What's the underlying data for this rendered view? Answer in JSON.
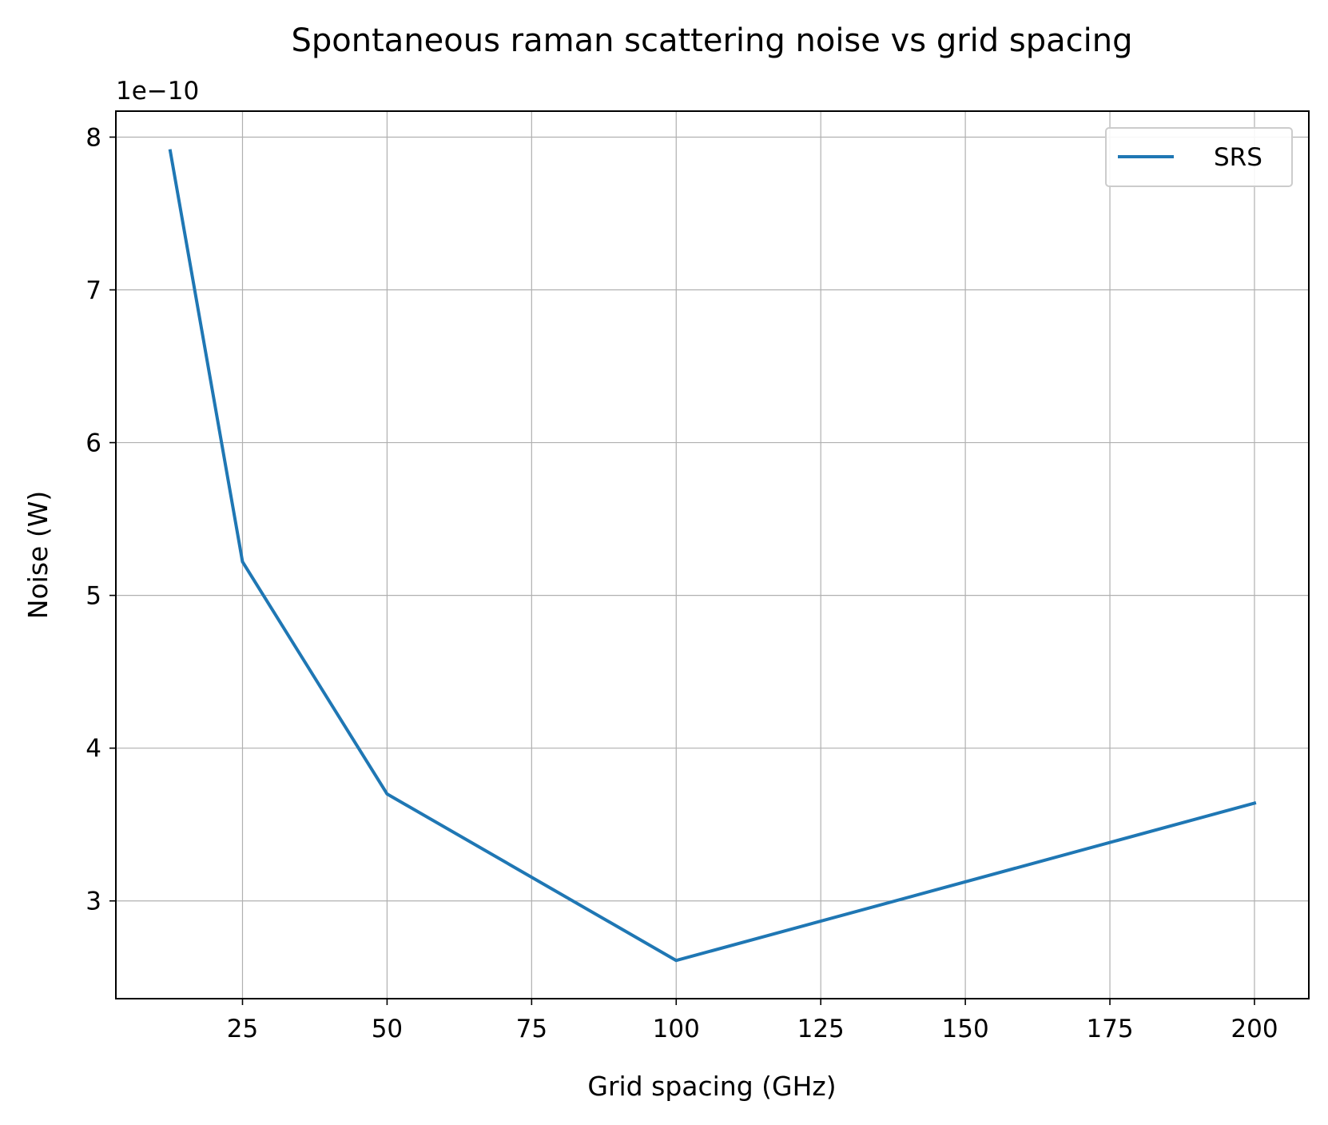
{
  "chart_data": {
    "type": "line",
    "title": "Spontaneous raman scattering noise vs grid spacing",
    "xlabel": "Grid spacing (GHz)",
    "ylabel": "Noise (W)",
    "y_offset_label": "1e−10",
    "xlim": [
      3.1,
      209.4
    ],
    "ylim": [
      2.36,
      8.17
    ],
    "x_ticks": [
      25,
      50,
      75,
      100,
      125,
      150,
      175,
      200
    ],
    "x_tick_labels": [
      "25",
      "50",
      "75",
      "100",
      "125",
      "150",
      "175",
      "200"
    ],
    "y_ticks": [
      3,
      4,
      5,
      6,
      7,
      8
    ],
    "y_tick_labels": [
      "3",
      "4",
      "5",
      "6",
      "7",
      "8"
    ],
    "grid": true,
    "legend_position": "top-right",
    "series": [
      {
        "name": "SRS",
        "color": "#1f77b4",
        "x": [
          12.5,
          25,
          50,
          100,
          200
        ],
        "y": [
          7.91,
          5.22,
          3.7,
          2.61,
          3.64
        ]
      }
    ]
  }
}
